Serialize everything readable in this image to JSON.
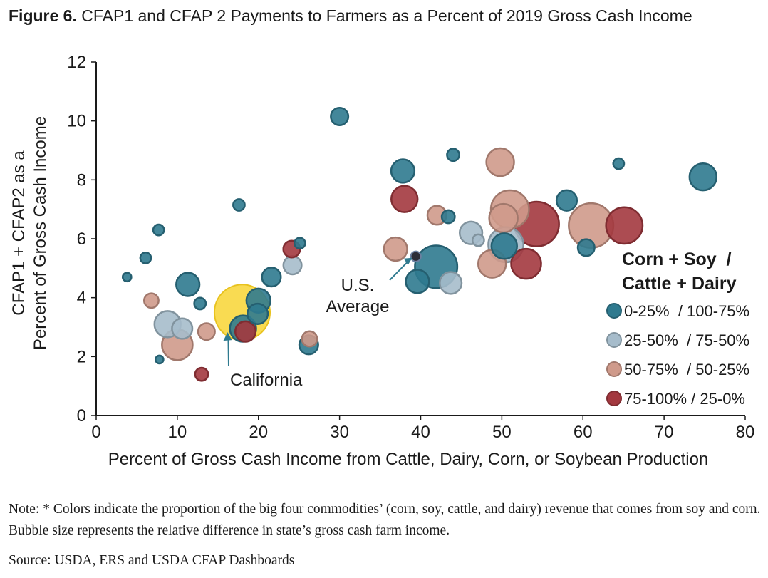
{
  "title": {
    "figure_label": "Figure 6.",
    "text": "CFAP1 and CFAP 2 Payments to Farmers as a Percent of 2019 Gross Cash Income"
  },
  "note": "Note: * Colors indicate the proportion of the big four commodities’ (corn, soy, cattle, and dairy) revenue that comes from soy and corn. Bubble size represents the relative difference in state’s gross cash farm income.",
  "source": "Source: USDA, ERS and USDA CFAP Dashboards",
  "colors": {
    "c1": "#2f7a8f",
    "c2": "#a6bccb",
    "c3": "#cf9a8b",
    "c4": "#a3383f",
    "california": "#f8d63a",
    "us_average": "#2e2e38"
  },
  "chart_data": {
    "type": "scatter",
    "xlabel": "Percent of Gross Cash Income from Cattle, Dairy, Corn, or Soybean Production",
    "ylabel_line1": "CFAP1 + CFAP2 as a",
    "ylabel_line2": "Percent of Gross Cash Income",
    "xlim": [
      0,
      80
    ],
    "ylim": [
      0,
      12
    ],
    "xticks": [
      0,
      10,
      20,
      30,
      40,
      50,
      60,
      70,
      80
    ],
    "yticks": [
      0,
      2,
      4,
      6,
      8,
      10,
      12
    ],
    "grid": false,
    "legend": {
      "position": "right",
      "title_line1": "Corn + Soy  /",
      "title_line2": "Cattle + Dairy",
      "entries": [
        {
          "category": "c1",
          "label": "0-25%  / 100-75%"
        },
        {
          "category": "c2",
          "label": "25-50%  / 75-50%"
        },
        {
          "category": "c3",
          "label": "50-75%  / 50-25%"
        },
        {
          "category": "c4",
          "label": "75-100% / 25-0%"
        }
      ]
    },
    "annotations": [
      {
        "text_lines": [
          "U.S.",
          "Average"
        ],
        "points_to": [
          39.4,
          5.4
        ]
      },
      {
        "text_lines": [
          "California"
        ],
        "points_to": [
          18,
          3.5
        ]
      }
    ],
    "points": [
      {
        "x": 3.8,
        "y": 4.7,
        "size": 0.3,
        "category": "c1"
      },
      {
        "x": 6.1,
        "y": 5.35,
        "size": 0.45,
        "category": "c1"
      },
      {
        "x": 7.7,
        "y": 6.3,
        "size": 0.45,
        "category": "c1"
      },
      {
        "x": 7.8,
        "y": 1.9,
        "size": 0.25,
        "category": "c1"
      },
      {
        "x": 11.3,
        "y": 4.45,
        "size": 1.3,
        "category": "c1"
      },
      {
        "x": 12.8,
        "y": 3.8,
        "size": 0.5,
        "category": "c1"
      },
      {
        "x": 17.6,
        "y": 7.15,
        "size": 0.5,
        "category": "c1"
      },
      {
        "x": 20.0,
        "y": 3.9,
        "size": 1.35,
        "category": "c1"
      },
      {
        "x": 21.6,
        "y": 4.7,
        "size": 1.0,
        "category": "c1"
      },
      {
        "x": 25.1,
        "y": 5.85,
        "size": 0.45,
        "category": "c1"
      },
      {
        "x": 26.2,
        "y": 2.4,
        "size": 1.0,
        "category": "c1"
      },
      {
        "x": 30.0,
        "y": 10.15,
        "size": 0.9,
        "category": "c1"
      },
      {
        "x": 37.8,
        "y": 8.3,
        "size": 1.3,
        "category": "c1"
      },
      {
        "x": 39.6,
        "y": 4.55,
        "size": 1.3,
        "category": "c1"
      },
      {
        "x": 41.9,
        "y": 5.05,
        "size": 2.6,
        "category": "c1"
      },
      {
        "x": 43.4,
        "y": 6.75,
        "size": 0.6,
        "category": "c1"
      },
      {
        "x": 44.0,
        "y": 8.85,
        "size": 0.55,
        "category": "c1"
      },
      {
        "x": 50.3,
        "y": 5.75,
        "size": 1.45,
        "category": "c1"
      },
      {
        "x": 58.0,
        "y": 7.3,
        "size": 1.1,
        "category": "c1"
      },
      {
        "x": 60.4,
        "y": 5.7,
        "size": 0.85,
        "category": "c1"
      },
      {
        "x": 64.4,
        "y": 8.55,
        "size": 0.45,
        "category": "c1"
      },
      {
        "x": 74.8,
        "y": 8.1,
        "size": 1.55,
        "category": "c1"
      },
      {
        "x": 8.8,
        "y": 3.1,
        "size": 1.5,
        "category": "c2"
      },
      {
        "x": 10.6,
        "y": 2.95,
        "size": 1.1,
        "category": "c2"
      },
      {
        "x": 24.2,
        "y": 5.1,
        "size": 0.95,
        "category": "c2"
      },
      {
        "x": 43.7,
        "y": 4.5,
        "size": 1.2,
        "category": "c2"
      },
      {
        "x": 46.2,
        "y": 6.2,
        "size": 1.25,
        "category": "c2"
      },
      {
        "x": 47.1,
        "y": 5.95,
        "size": 0.5,
        "category": "c2"
      },
      {
        "x": 50.5,
        "y": 5.8,
        "size": 2.1,
        "category": "c2"
      },
      {
        "x": 6.8,
        "y": 3.9,
        "size": 0.7,
        "category": "c3"
      },
      {
        "x": 10.0,
        "y": 2.4,
        "size": 1.8,
        "category": "c3"
      },
      {
        "x": 13.6,
        "y": 2.85,
        "size": 0.85,
        "category": "c3"
      },
      {
        "x": 26.3,
        "y": 2.6,
        "size": 0.75,
        "category": "c3"
      },
      {
        "x": 36.9,
        "y": 5.65,
        "size": 1.3,
        "category": "c3"
      },
      {
        "x": 42.0,
        "y": 6.8,
        "size": 1.0,
        "category": "c3"
      },
      {
        "x": 48.8,
        "y": 5.15,
        "size": 1.6,
        "category": "c3"
      },
      {
        "x": 49.8,
        "y": 8.6,
        "size": 1.6,
        "category": "c3"
      },
      {
        "x": 50.2,
        "y": 6.7,
        "size": 1.65,
        "category": "c3"
      },
      {
        "x": 51.0,
        "y": 7.0,
        "size": 2.3,
        "category": "c3"
      },
      {
        "x": 61.0,
        "y": 6.45,
        "size": 2.75,
        "category": "c3"
      },
      {
        "x": 13.0,
        "y": 1.4,
        "size": 0.6,
        "category": "c4"
      },
      {
        "x": 18.4,
        "y": 2.85,
        "size": 1.1,
        "category": "c4"
      },
      {
        "x": 24.1,
        "y": 5.65,
        "size": 0.85,
        "category": "c4"
      },
      {
        "x": 38.0,
        "y": 7.35,
        "size": 1.5,
        "category": "c4"
      },
      {
        "x": 53.0,
        "y": 5.15,
        "size": 1.75,
        "category": "c4"
      },
      {
        "x": 54.3,
        "y": 6.5,
        "size": 2.75,
        "category": "c4"
      },
      {
        "x": 65.1,
        "y": 6.45,
        "size": 2.2,
        "category": "c4"
      },
      {
        "x": 18.0,
        "y": 3.5,
        "size": 3.5,
        "category": "california"
      },
      {
        "x": 18.1,
        "y": 2.95,
        "size": 1.5,
        "category": "c1"
      },
      {
        "x": 19.9,
        "y": 3.45,
        "size": 1.1,
        "category": "c1"
      },
      {
        "x": 39.4,
        "y": 5.4,
        "size": 0.4,
        "category": "us_average"
      }
    ]
  }
}
